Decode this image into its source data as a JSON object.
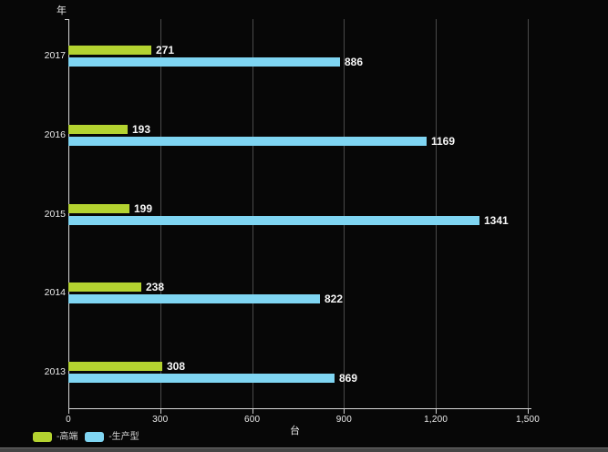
{
  "chart_data": {
    "type": "bar",
    "orientation": "horizontal",
    "categories": [
      "2017",
      "2016",
      "2015",
      "2014",
      "2013"
    ],
    "series": [
      {
        "name": "高端",
        "color": "#b4d330",
        "values": [
          271,
          193,
          199,
          238,
          308
        ]
      },
      {
        "name": "生产型",
        "color": "#7fd5f2",
        "values": [
          886,
          1169,
          1341,
          822,
          869
        ]
      }
    ],
    "value_labels": {
      "高端": [
        "271",
        "193",
        "199",
        "238",
        "308"
      ],
      "生产型": [
        "886",
        "1169",
        "1341",
        "822",
        "869"
      ]
    },
    "title": "",
    "xlabel": "台",
    "ylabel": "年",
    "xlim": [
      0,
      1500
    ],
    "x_ticks": [
      0,
      300,
      600,
      900,
      1200,
      1500
    ],
    "x_tick_labels": [
      "0",
      "300",
      "600",
      "900",
      "1,200",
      "1,500"
    ],
    "grid": "vertical-gridlines-on",
    "legend_position": "bottom-left",
    "background_color": "#070707"
  },
  "axes": {
    "y_title": "年",
    "x_title": "台"
  },
  "legend": {
    "items": [
      {
        "label": "-高端",
        "color": "#b4d330"
      },
      {
        "label": "-生产型",
        "color": "#7fd5f2"
      }
    ]
  }
}
